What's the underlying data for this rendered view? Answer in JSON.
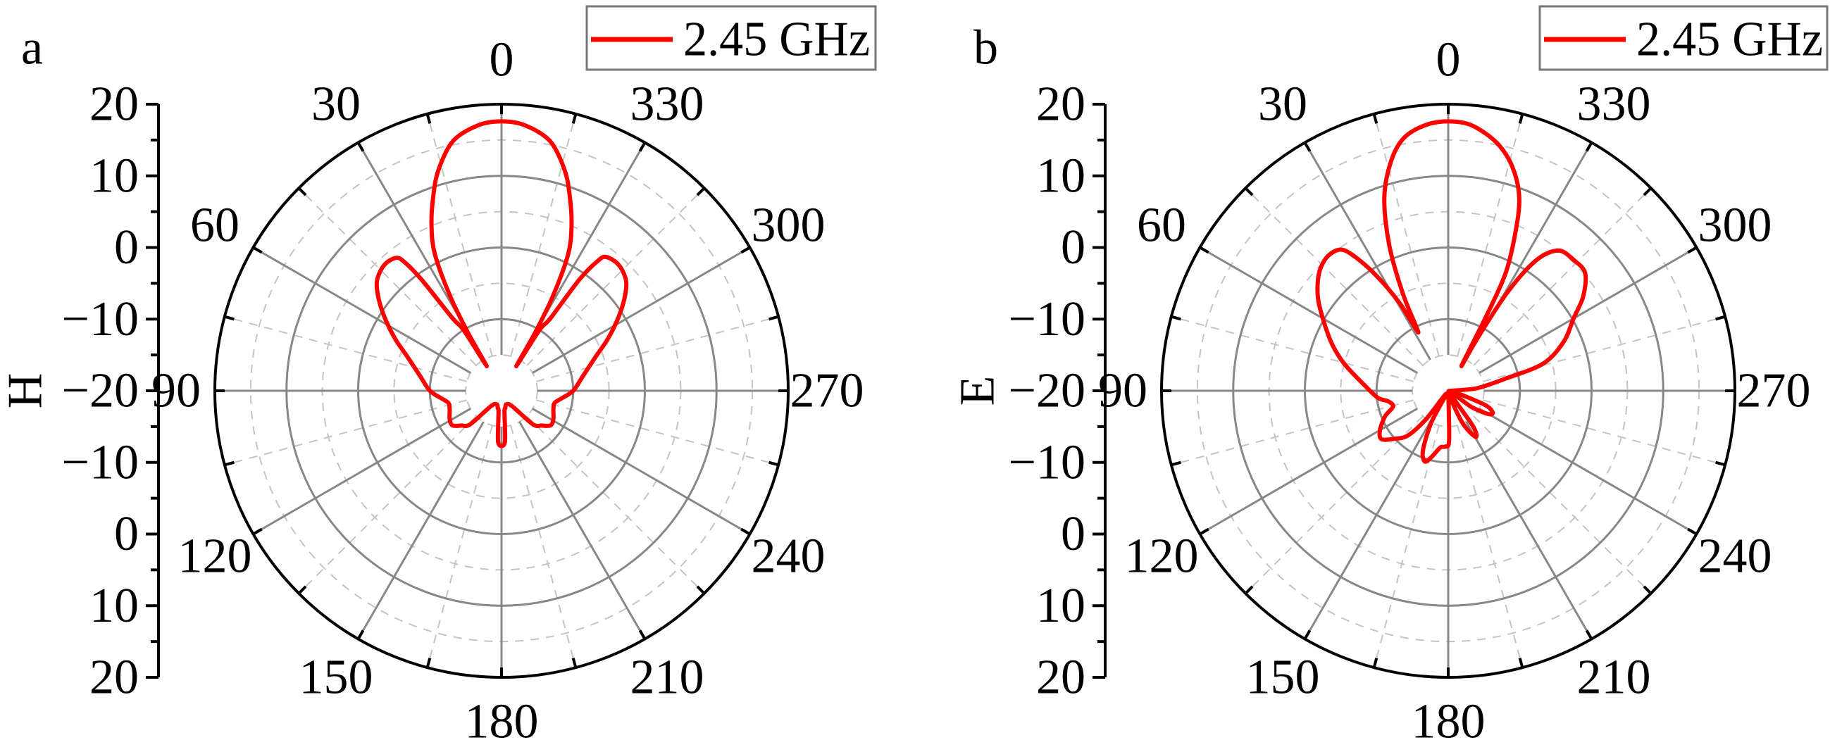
{
  "chart_data": [
    {
      "type": "line",
      "coordinate_system": "polar",
      "panel_label": "a",
      "radial_label": "H",
      "radial_range": [
        -20,
        20
      ],
      "radial_ticks": [
        "20",
        "10",
        "0",
        "−10",
        "−20",
        "−10",
        "0",
        "10",
        "20"
      ],
      "angular_direction": "counterclockwise",
      "angular_zero": "top",
      "angular_ticks": [
        "0",
        "30",
        "60",
        "90",
        "120",
        "150",
        "180",
        "210",
        "240",
        "270",
        "300",
        "330"
      ],
      "grid": true,
      "legend": {
        "placement": "top-right",
        "entries": [
          "2.45 GHz"
        ]
      },
      "series": [
        {
          "name": "2.45 GHz",
          "color": "#ff0000",
          "angle_deg": [
            0,
            5,
            11,
            16,
            19.5,
            23,
            26,
            28.5,
            30,
            31,
            32,
            34,
            35.7,
            37,
            38.5,
            43,
            48.5,
            53,
            58,
            64,
            70,
            80,
            90,
            97,
            103,
            110,
            118,
            125,
            131,
            137,
            145,
            160,
            168,
            172,
            176,
            180,
            184,
            188,
            192,
            200,
            215,
            223,
            229,
            235,
            242,
            250,
            257,
            263,
            270,
            280,
            290,
            296,
            302,
            307,
            311.5,
            317,
            322,
            323.5,
            325,
            326,
            328,
            329,
            330,
            331.5,
            334,
            337,
            340.5,
            344,
            349,
            355
          ],
          "values_db": [
            17.6,
            17.2,
            15.5,
            12,
            8.6,
            5,
            1.2,
            -5,
            -10.7,
            -16,
            -10,
            -7.8,
            -1,
            2.5,
            3.7,
            4,
            3.2,
            1.5,
            -0.8,
            -3.5,
            -6,
            -8.5,
            -10,
            -11.5,
            -12.4,
            -12.3,
            -11.8,
            -11.6,
            -12.6,
            -13.6,
            -17.3,
            -18,
            -17.5,
            -17,
            -13,
            -12.3,
            -13,
            -17,
            -17.5,
            -18,
            -17.3,
            -13.6,
            -12.6,
            -11.6,
            -11.8,
            -12.3,
            -12.4,
            -11.5,
            -10,
            -8.5,
            -6,
            -3.5,
            -0.8,
            1.5,
            3.2,
            4,
            3.7,
            2.5,
            -1,
            -7.8,
            -10,
            -16,
            -10.7,
            -5,
            1.2,
            5,
            8.6,
            12,
            15.5,
            17.2
          ]
        }
      ]
    },
    {
      "type": "line",
      "coordinate_system": "polar",
      "panel_label": "b",
      "radial_label": "E",
      "radial_range": [
        -20,
        20
      ],
      "radial_ticks": [
        "20",
        "10",
        "0",
        "−10",
        "−20",
        "−10",
        "0",
        "10",
        "20"
      ],
      "angular_direction": "counterclockwise",
      "angular_zero": "top",
      "angular_ticks": [
        "0",
        "30",
        "60",
        "90",
        "120",
        "150",
        "180",
        "210",
        "240",
        "270",
        "300",
        "330"
      ],
      "grid": true,
      "legend": {
        "placement": "top-right",
        "entries": [
          "2.45 GHz"
        ]
      },
      "series": [
        {
          "name": "2.45 GHz",
          "color": "#ff0000",
          "angle_deg": [
            0,
            5,
            10,
            14,
            18.3,
            22,
            25,
            26.5,
            27.5,
            29,
            32,
            35,
            37.4,
            42,
            47.6,
            54,
            60,
            68,
            75.4,
            85,
            95.5,
            100,
            106,
            112,
            120,
            126,
            132,
            138,
            142,
            146,
            152,
            157,
            161.7,
            166,
            172,
            177,
            181,
            185,
            195,
            204,
            210.7,
            215,
            225,
            235,
            240,
            244,
            249,
            258,
            268,
            275,
            282,
            286,
            293,
            300,
            305,
            310.7,
            316,
            321.8,
            326,
            329,
            331,
            332,
            333,
            334,
            337,
            339.8,
            344,
            349,
            355
          ],
          "values_db": [
            17.6,
            17.2,
            15.8,
            13,
            8.4,
            2,
            -5,
            -10,
            -10.5,
            -6,
            -1,
            3,
            4.8,
            5.2,
            4.4,
            2.5,
            0.2,
            -2.5,
            -5,
            -8,
            -10.1,
            -11.5,
            -12,
            -10.5,
            -9,
            -8.5,
            -10,
            -11.6,
            -15,
            -19.5,
            -15,
            -11,
            -9.6,
            -10.5,
            -12,
            -12.2,
            -13,
            -19.5,
            -19,
            -15,
            -12.5,
            -14,
            -19.5,
            -16,
            -13.5,
            -13.1,
            -14.5,
            -19,
            -19.7,
            -16,
            -11.8,
            -6.2,
            -2.5,
            0.2,
            3,
            5.2,
            5.3,
            4.9,
            2,
            -4,
            -12,
            -16,
            -8,
            -1.7,
            4,
            8.7,
            12.5,
            15.3,
            17.2
          ]
        }
      ]
    }
  ]
}
